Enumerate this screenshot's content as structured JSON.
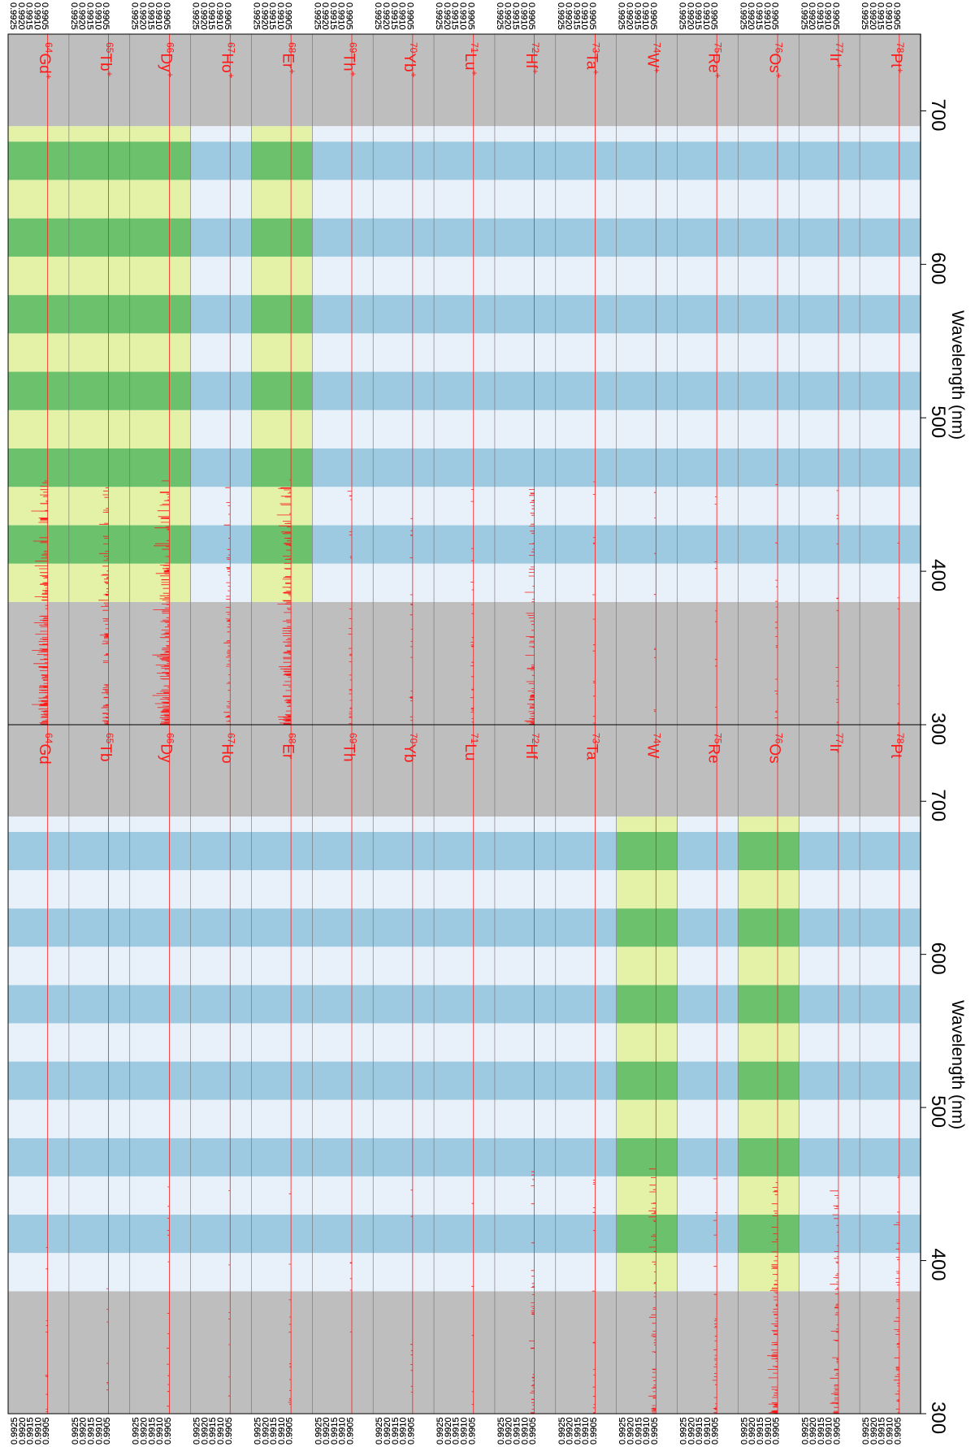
{
  "chart_data": {
    "type": "line",
    "axis": {
      "label": "Wavelength (nm)",
      "range": [
        300,
        750
      ],
      "ticks": [
        300,
        400,
        500,
        600,
        700
      ],
      "tick_labels": [
        "300",
        "400",
        "500",
        "600",
        "700"
      ],
      "visible_band": [
        380,
        690
      ],
      "stripe_period_nm": 50
    },
    "transmittance_axis": {
      "tick_labels": [
        "0.9925",
        "0.9920",
        "0.9915",
        "0.9910",
        "0.9905"
      ],
      "range": [
        0.9905,
        0.9925
      ],
      "baseline": 0.991
    },
    "colors": {
      "uv_ir_region": "#bebebe",
      "stripe_light_blue": "#e8f0fa",
      "stripe_dark_blue": "#9ecae1",
      "stripe_light_green": "#e3f2a6",
      "stripe_dark_green": "#6cc16c",
      "trace": "#ff1a1a"
    },
    "panels": [
      {
        "panel": "ions",
        "elements": [
          {
            "z": "64",
            "symbol": "Gd",
            "charge": "+",
            "highlight": true
          },
          {
            "z": "65",
            "symbol": "Tb",
            "charge": "+",
            "highlight": true
          },
          {
            "z": "66",
            "symbol": "Dy",
            "charge": "+",
            "highlight": true
          },
          {
            "z": "67",
            "symbol": "Ho",
            "charge": "+",
            "highlight": false
          },
          {
            "z": "68",
            "symbol": "Er",
            "charge": "+",
            "highlight": true
          },
          {
            "z": "69",
            "symbol": "Th",
            "charge": "+",
            "highlight": false
          },
          {
            "z": "70",
            "symbol": "Yb",
            "charge": "+",
            "highlight": false
          },
          {
            "z": "71",
            "symbol": "Lu",
            "charge": "+",
            "highlight": false
          },
          {
            "z": "72",
            "symbol": "Hf",
            "charge": "+",
            "highlight": false
          },
          {
            "z": "73",
            "symbol": "Ta",
            "charge": "+",
            "highlight": false
          },
          {
            "z": "74",
            "symbol": "W",
            "charge": "+",
            "highlight": false
          },
          {
            "z": "75",
            "symbol": "Re",
            "charge": "+",
            "highlight": false
          },
          {
            "z": "76",
            "symbol": "Os",
            "charge": "+",
            "highlight": false
          },
          {
            "z": "77",
            "symbol": "Ir",
            "charge": "+",
            "highlight": false
          },
          {
            "z": "78",
            "symbol": "Pt",
            "charge": "+",
            "highlight": false
          }
        ]
      },
      {
        "panel": "neutral",
        "elements": [
          {
            "z": "64",
            "symbol": "Gd",
            "charge": "",
            "highlight": false
          },
          {
            "z": "65",
            "symbol": "Tb",
            "charge": "",
            "highlight": false
          },
          {
            "z": "66",
            "symbol": "Dy",
            "charge": "",
            "highlight": false
          },
          {
            "z": "67",
            "symbol": "Ho",
            "charge": "",
            "highlight": false
          },
          {
            "z": "68",
            "symbol": "Er",
            "charge": "",
            "highlight": false
          },
          {
            "z": "69",
            "symbol": "Th",
            "charge": "",
            "highlight": false
          },
          {
            "z": "70",
            "symbol": "Yb",
            "charge": "",
            "highlight": false
          },
          {
            "z": "71",
            "symbol": "Lu",
            "charge": "",
            "highlight": false
          },
          {
            "z": "72",
            "symbol": "Hf",
            "charge": "",
            "highlight": false
          },
          {
            "z": "73",
            "symbol": "Ta",
            "charge": "",
            "highlight": false
          },
          {
            "z": "74",
            "symbol": "W",
            "charge": "",
            "highlight": true
          },
          {
            "z": "75",
            "symbol": "Re",
            "charge": "",
            "highlight": false
          },
          {
            "z": "76",
            "symbol": "Os",
            "charge": "",
            "highlight": true
          },
          {
            "z": "77",
            "symbol": "Ir",
            "charge": "",
            "highlight": false
          },
          {
            "z": "78",
            "symbol": "Pt",
            "charge": "",
            "highlight": false
          }
        ]
      }
    ]
  }
}
